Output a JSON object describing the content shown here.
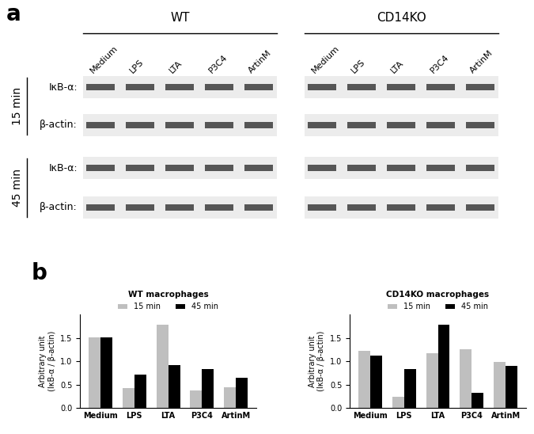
{
  "panel_labels": [
    "a",
    "b"
  ],
  "blot": {
    "groups": [
      {
        "name": "WT",
        "lanes": [
          "Medium",
          "LPS",
          "LTA",
          "P3C4",
          "ArtinM"
        ]
      },
      {
        "name": "CD14KO",
        "lanes": [
          "Medium",
          "LPS",
          "LTA",
          "P3C4",
          "ArtinM"
        ]
      }
    ],
    "time_points": [
      "15 min",
      "45 min"
    ],
    "rows": [
      "IκB-α:",
      "β-actin:"
    ]
  },
  "chart_data": [
    {
      "type": "bar",
      "title": "WT macrophages",
      "y_label": "Arbitrary unit\n(IκB-α / β-actin)",
      "categories": [
        "Medium",
        "LPS",
        "LTA",
        "P3C4",
        "ArtinM"
      ],
      "series": [
        {
          "name": "15 min",
          "color": "#bfbfbf",
          "values": [
            1.52,
            0.43,
            1.78,
            0.38,
            0.45
          ]
        },
        {
          "name": "45 min",
          "color": "#000000",
          "values": [
            1.51,
            0.72,
            0.92,
            0.83,
            0.65
          ]
        }
      ],
      "ylim": [
        0,
        2.0
      ],
      "yticks": [
        {
          "value": 0,
          "label": "0.0"
        },
        {
          "value": 0.5,
          "label": "0.5"
        },
        {
          "value": 1,
          "label": "1.0"
        },
        {
          "value": 1.5,
          "label": "1.5"
        }
      ],
      "grid": false,
      "legend": "top"
    },
    {
      "type": "bar",
      "title": "CD14KO macrophages",
      "y_label": "Arbitrary unit\n(IκB-α / β-actin)",
      "categories": [
        "Medium",
        "LPS",
        "LTA",
        "P3C4",
        "ArtinM"
      ],
      "series": [
        {
          "name": "15 min",
          "color": "#bfbfbf",
          "values": [
            1.22,
            0.24,
            1.17,
            1.25,
            0.98
          ]
        },
        {
          "name": "45 min",
          "color": "#000000",
          "values": [
            1.12,
            0.84,
            1.78,
            0.33,
            0.9
          ]
        }
      ],
      "ylim": [
        0,
        2.0
      ],
      "yticks": [
        {
          "value": 0,
          "label": "0.0"
        },
        {
          "value": 0.5,
          "label": "0.5"
        },
        {
          "value": 1,
          "label": "1.0"
        },
        {
          "value": 1.5,
          "label": "1.5"
        }
      ],
      "grid": false,
      "legend": "top"
    }
  ]
}
